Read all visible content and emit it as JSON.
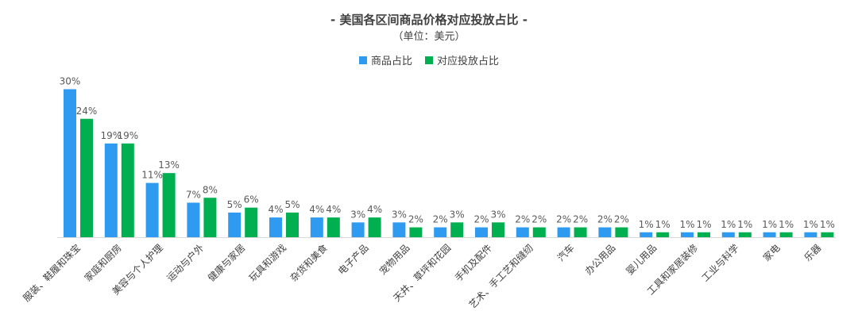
{
  "chart_data": {
    "type": "bar",
    "title": "- 美国各区间商品价格对应投放占比 -",
    "subtitle": "（单位：美元）",
    "categories": [
      "服装、鞋履和珠宝",
      "家庭和厨房",
      "美容与个人护理",
      "运动与户外",
      "健康与家居",
      "玩具和游戏",
      "杂货和美食",
      "电子产品",
      "宠物用品",
      "天井、草坪和花园",
      "手机及配件",
      "艺术、手工艺和缝纫",
      "汽车",
      "办公用品",
      "婴儿用品",
      "工具和家居装修",
      "工业与科学",
      "家电",
      "乐器"
    ],
    "series": [
      {
        "name": "商品占比",
        "color": "#2e9bf0",
        "values": [
          30,
          19,
          11,
          7,
          5,
          4,
          4,
          3,
          3,
          2,
          2,
          2,
          2,
          2,
          1,
          1,
          1,
          1,
          1
        ]
      },
      {
        "name": "对应投放占比",
        "color": "#00b050",
        "values": [
          24,
          19,
          13,
          8,
          6,
          5,
          4,
          4,
          2,
          3,
          3,
          2,
          2,
          2,
          1,
          1,
          1,
          1,
          1
        ]
      }
    ],
    "value_suffix": "%",
    "ylim": [
      0,
      32
    ],
    "grid": false,
    "legend_position": "top-center"
  }
}
